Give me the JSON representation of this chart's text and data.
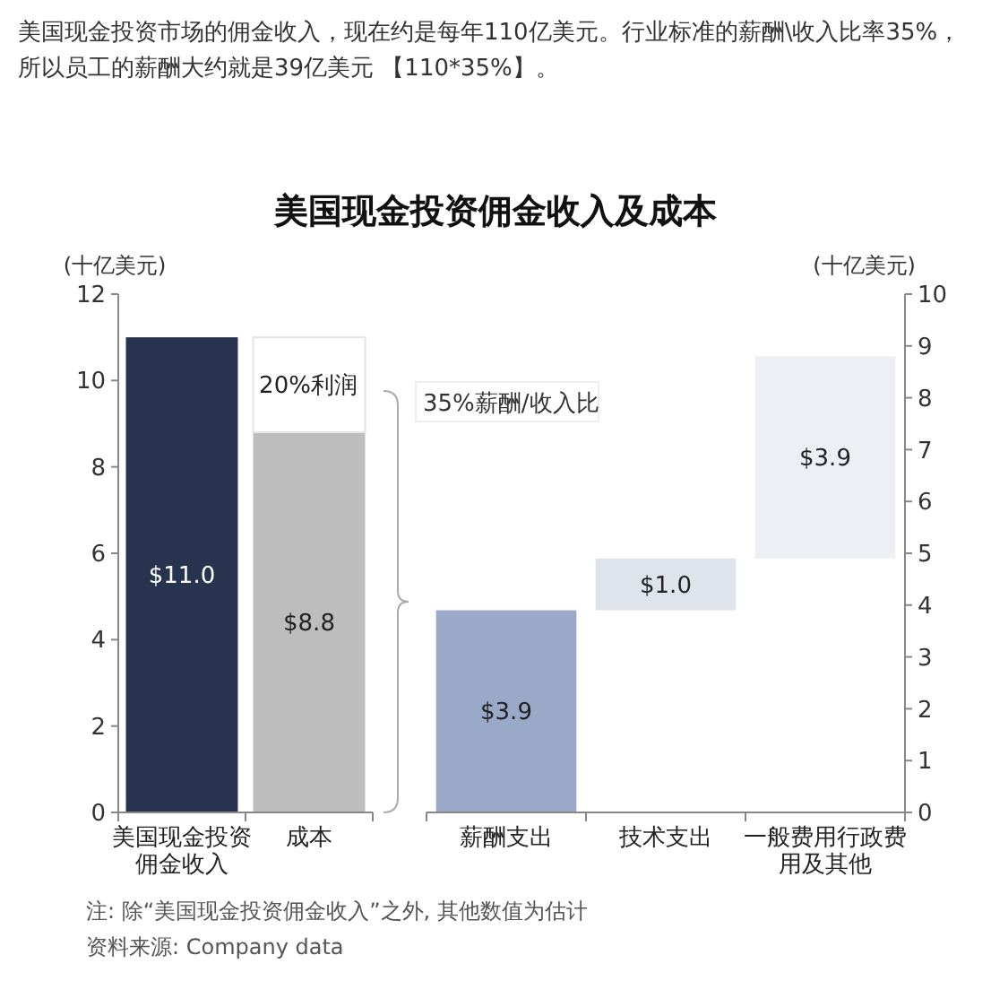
{
  "chart_data": [
    {
      "type": "bar",
      "title": "美国现金投资佣金收入及成本",
      "ylabel": "(十亿美元)",
      "annotations": [
        "美国现金投资市场的佣金收入，现在约是每年110亿美元。行业标准的薪酬\\收入比率35%，所以员工的薪酬大约就是39亿美元 【110*35%】。",
        "注: 除“美国现金投资佣金收入”之外, 其他数值为估计",
        "资料来源: Company data",
        "20%利润"
      ],
      "categories": [
        "美国现金投资佣金收入",
        "成本"
      ],
      "stacked": true,
      "series": [
        {
          "colors": [
            "#27334f",
            "#bdbdbd"
          ],
          "values": [
            11.0,
            8.8
          ],
          "value_labels": [
            "$11.0",
            "$8.8"
          ]
        },
        {
          "color": "#ffffff",
          "values": [
            null,
            2.2
          ]
        }
      ],
      "ylim": [
        0,
        12
      ],
      "yticks": [
        0,
        2,
        4,
        6,
        8,
        10,
        12
      ],
      "grid": false
    },
    {
      "type": "bar",
      "y2label": "(十亿美元)",
      "annotations": [
        "35%薪酬/收入比"
      ],
      "categories": [
        "薪酬支出",
        "技术支出",
        "一般费用行政费用及其他"
      ],
      "series": [
        {
          "axis": "y2",
          "colors": [
            "#9aa9c8",
            "#dfe3ec",
            "#eeeff4"
          ],
          "values": [
            3.9,
            1.0,
            3.9
          ],
          "base": [
            0,
            3.9,
            4.9
          ],
          "value_labels": [
            "$3.9",
            "$1.0",
            "$3.9"
          ]
        }
      ],
      "y2lim": [
        0,
        10
      ],
      "y2ticks": [
        0,
        1,
        2,
        3,
        4,
        5,
        6,
        7,
        8,
        9,
        10
      ],
      "grid": false
    }
  ]
}
